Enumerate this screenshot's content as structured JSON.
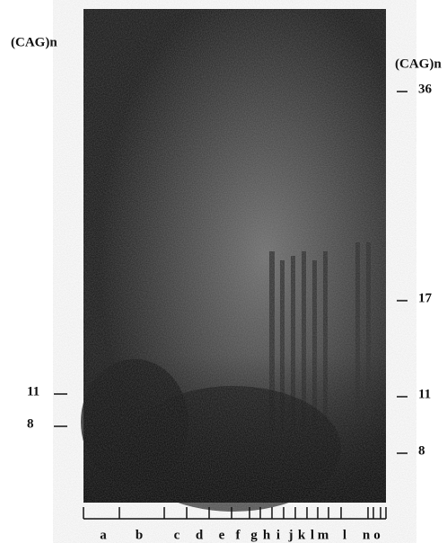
{
  "left_label": "(CAG)n",
  "right_label": "(CAG)n",
  "left_markers": [
    "11",
    "8"
  ],
  "right_markers": [
    "36",
    "17",
    "11",
    "8"
  ],
  "lanes": [
    "a",
    "b",
    "c",
    "d",
    "e",
    "f",
    "g",
    "h",
    "i",
    "j",
    "k",
    "l",
    "m",
    "l",
    "n",
    "o"
  ]
}
